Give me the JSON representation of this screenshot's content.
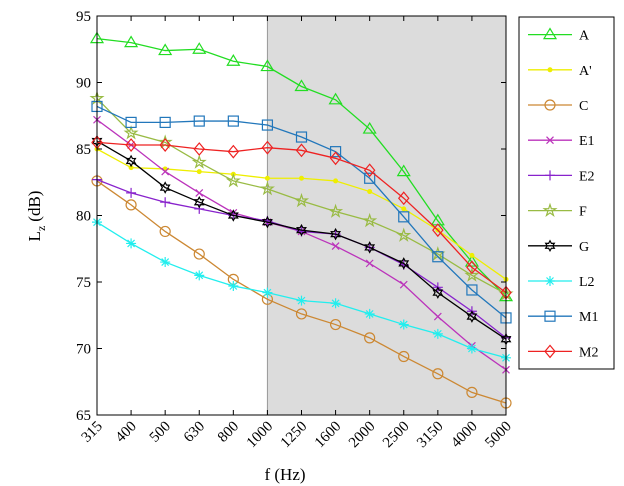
{
  "chart_data": {
    "type": "line",
    "xlabel": "f (Hz)",
    "ylabel": "L",
    "ylabel_sub": "z",
    "ylabel_unit": "(dB)",
    "ylim": [
      65,
      95
    ],
    "yticks": [
      65,
      70,
      75,
      80,
      85,
      90,
      95
    ],
    "categories": [
      "315",
      "400",
      "500",
      "630",
      "800",
      "1000",
      "1250",
      "1600",
      "2000",
      "2500",
      "3150",
      "4000",
      "5000"
    ],
    "shaded_region": {
      "from": "1000",
      "to": "5000",
      "color": "#dcdcdc"
    },
    "grid": false,
    "legend_position": "right",
    "series": [
      {
        "name": "A",
        "color": "#22dd22",
        "marker": "triangle",
        "values": [
          93.3,
          93.0,
          92.4,
          92.5,
          91.6,
          91.2,
          89.7,
          88.7,
          86.5,
          83.3,
          79.6,
          76.5,
          73.9
        ]
      },
      {
        "name": "A'",
        "color": "#eeee00",
        "marker": "dot",
        "values": [
          85.0,
          83.6,
          83.5,
          83.3,
          83.1,
          82.8,
          82.8,
          82.6,
          81.8,
          80.5,
          78.9,
          77.0,
          75.2
        ]
      },
      {
        "name": "C",
        "color": "#cc8833",
        "marker": "circle",
        "values": [
          82.6,
          80.8,
          78.8,
          77.1,
          75.2,
          73.7,
          72.6,
          71.8,
          70.8,
          69.4,
          68.1,
          66.7,
          65.9
        ]
      },
      {
        "name": "E1",
        "color": "#bb33bb",
        "marker": "x",
        "values": [
          87.2,
          85.3,
          83.3,
          81.7,
          80.2,
          79.5,
          78.8,
          77.7,
          76.4,
          74.8,
          72.4,
          70.2,
          68.4
        ]
      },
      {
        "name": "E2",
        "color": "#8822cc",
        "marker": "plus",
        "values": [
          82.7,
          81.7,
          81.0,
          80.5,
          80.0,
          79.6,
          78.8,
          78.6,
          77.6,
          76.3,
          74.6,
          72.8,
          70.8
        ]
      },
      {
        "name": "F",
        "color": "#99bb44",
        "marker": "star",
        "values": [
          88.8,
          86.2,
          85.5,
          84.0,
          82.6,
          82.0,
          81.1,
          80.3,
          79.6,
          78.5,
          77.1,
          75.5,
          74.1
        ]
      },
      {
        "name": "G",
        "color": "#000000",
        "marker": "hexagram",
        "values": [
          85.6,
          84.1,
          82.1,
          81.0,
          80.0,
          79.5,
          78.9,
          78.6,
          77.6,
          76.4,
          74.2,
          72.4,
          70.7
        ]
      },
      {
        "name": "L2",
        "color": "#22eeee",
        "marker": "asterisk",
        "values": [
          79.5,
          77.9,
          76.5,
          75.5,
          74.7,
          74.2,
          73.6,
          73.4,
          72.6,
          71.8,
          71.1,
          70.0,
          69.3
        ]
      },
      {
        "name": "M1",
        "color": "#2277bb",
        "marker": "square",
        "values": [
          88.2,
          87.0,
          87.0,
          87.1,
          87.1,
          86.8,
          85.9,
          84.8,
          82.8,
          79.9,
          76.9,
          74.4,
          72.3
        ]
      },
      {
        "name": "M2",
        "color": "#ee2222",
        "marker": "diamond",
        "values": [
          85.5,
          85.3,
          85.3,
          85.0,
          84.8,
          85.1,
          84.9,
          84.3,
          83.4,
          81.3,
          78.9,
          76.1,
          74.2
        ]
      }
    ]
  }
}
